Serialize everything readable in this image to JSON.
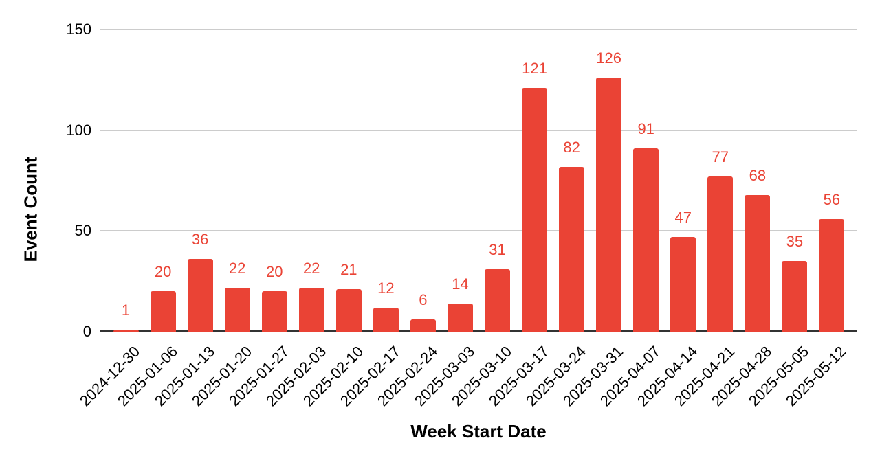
{
  "chart_data": {
    "type": "bar",
    "title": "",
    "xlabel": "Week Start Date",
    "ylabel": "Event Count",
    "categories": [
      "2024-12-30",
      "2025-01-06",
      "2025-01-13",
      "2025-01-20",
      "2025-01-27",
      "2025-02-03",
      "2025-02-10",
      "2025-02-17",
      "2025-02-24",
      "2025-03-03",
      "2025-03-10",
      "2025-03-17",
      "2025-03-24",
      "2025-03-31",
      "2025-04-07",
      "2025-04-14",
      "2025-04-21",
      "2025-04-28",
      "2025-05-05",
      "2025-05-12"
    ],
    "values": [
      1,
      20,
      36,
      22,
      20,
      22,
      21,
      12,
      6,
      14,
      31,
      121,
      82,
      126,
      91,
      47,
      77,
      68,
      35,
      56
    ],
    "ylim": [
      0,
      150
    ],
    "yticks": [
      0,
      50,
      100,
      150
    ],
    "grid": true,
    "legend": "none",
    "value_labels_shown": true
  },
  "colors": {
    "background": "#FFFFFF",
    "bar": "#EA4335",
    "value_label": "#EA4335",
    "gridline": "#CCCCCC",
    "baseline": "#333333",
    "axis_text": "#000000"
  }
}
